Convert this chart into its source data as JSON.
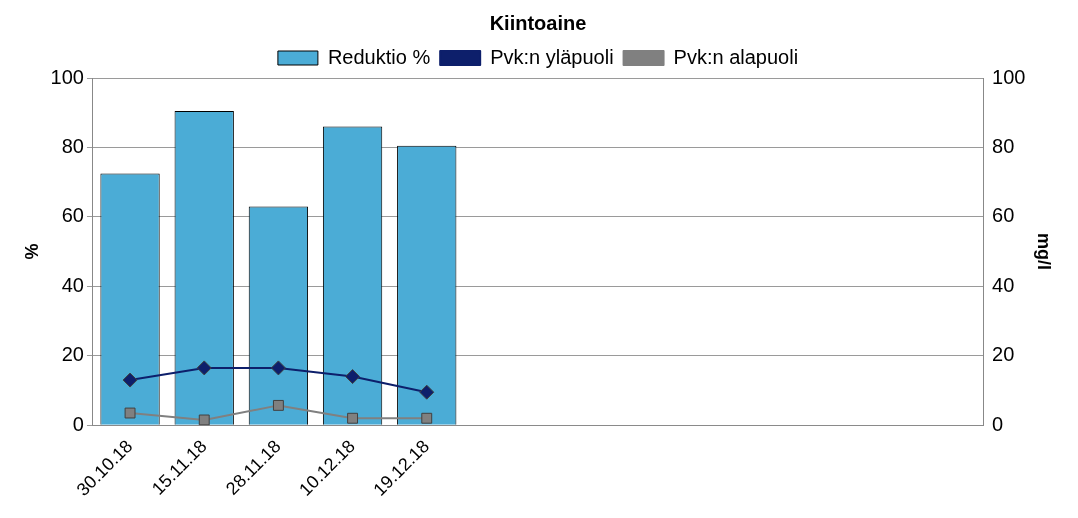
{
  "chart_data": {
    "type": "bar",
    "title": "Kiintoaine",
    "ylabel": "%",
    "y2label": "mg/l",
    "categories": [
      "30.10.18",
      "15.11.18",
      "28.11.18",
      "10.12.18",
      "19.12.18",
      null,
      null,
      null,
      null,
      null,
      null,
      null
    ],
    "series": [
      {
        "name": "Reduktio %",
        "color": "#4bacd6",
        "values": [
          72.5,
          90.5,
          63,
          86,
          80.5,
          null,
          null,
          null,
          null,
          null,
          null,
          null
        ]
      },
      {
        "name": "Pvk:n yläpuoli",
        "type": "line",
        "axis": "y2",
        "marker": "diamond",
        "color": "#0d1f6b",
        "values": [
          13,
          16.5,
          16.5,
          14,
          9.5,
          null,
          null,
          null,
          null,
          null,
          null,
          null
        ]
      },
      {
        "name": "Pvk:n alapuoli",
        "type": "line",
        "axis": "y2",
        "marker": "square",
        "color": "#808080",
        "values": [
          3.5,
          1.5,
          5.7,
          2,
          2,
          null,
          null,
          null,
          null,
          null,
          null,
          null
        ]
      }
    ],
    "ylim": [
      0,
      100
    ],
    "yticks": [
      0,
      20,
      40,
      60,
      80,
      100
    ],
    "y2lim": [
      0,
      100
    ],
    "y2ticks": [
      0,
      20,
      40,
      60,
      80,
      100
    ],
    "grid": "y",
    "legend": "top"
  }
}
